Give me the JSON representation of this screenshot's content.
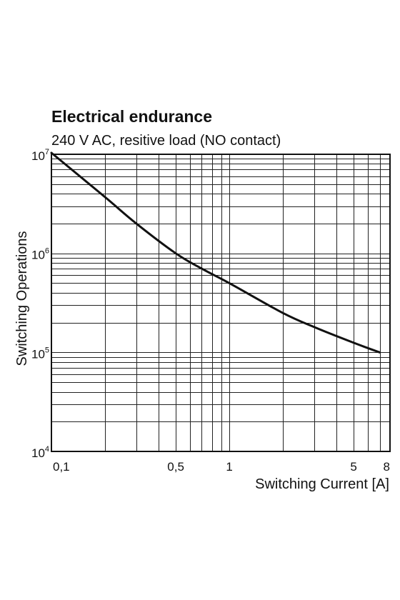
{
  "chart_data": {
    "type": "line",
    "title": "Electrical endurance",
    "subtitle": "240 V AC, resitive load (NO contact)",
    "xlabel": "Switching Current [A]",
    "ylabel": "Switching Operations",
    "x_scale": "log",
    "y_scale": "log",
    "xlim": [
      0.1,
      8
    ],
    "ylim": [
      10000,
      10000000
    ],
    "x_ticks": [
      {
        "value": 0.1,
        "label": "0,1"
      },
      {
        "value": 0.5,
        "label": "0,5"
      },
      {
        "value": 1,
        "label": "1"
      },
      {
        "value": 5,
        "label": "5"
      },
      {
        "value": 8,
        "label": "8"
      }
    ],
    "y_ticks": [
      {
        "value": 10000,
        "base": "10",
        "exp": "4"
      },
      {
        "value": 100000,
        "base": "10",
        "exp": "5"
      },
      {
        "value": 1000000,
        "base": "10",
        "exp": "6"
      },
      {
        "value": 10000000,
        "base": "10",
        "exp": "7"
      }
    ],
    "grid": true,
    "series": [
      {
        "x": [
          0.1,
          0.2,
          0.3,
          0.5,
          0.7,
          1,
          2,
          3,
          5,
          7
        ],
        "y": [
          11000000,
          3700000,
          2000000,
          1000000,
          700000,
          500000,
          250000,
          180000,
          125000,
          100000
        ]
      }
    ]
  }
}
